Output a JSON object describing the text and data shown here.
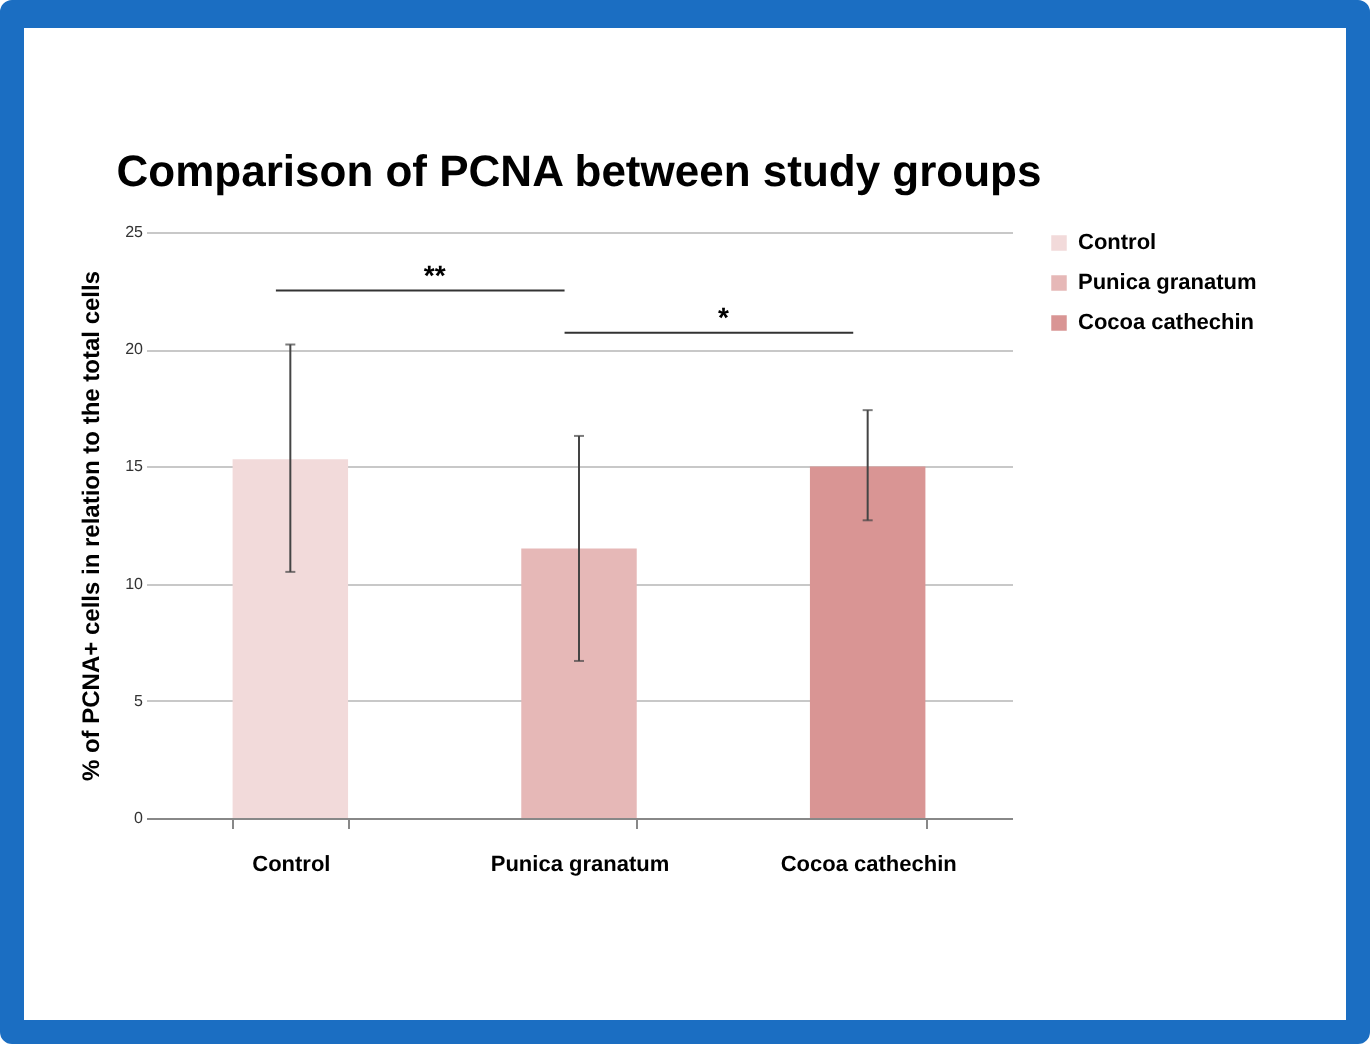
{
  "chart_data": {
    "type": "bar",
    "title": "Comparison of PCNA between study groups",
    "ylabel": "% of PCNA+ cells in relation to the total cells",
    "categories": [
      "Control",
      "Punica granatum",
      "Cocoa cathechin"
    ],
    "series": [
      {
        "name": "Control",
        "color": "#f2dada",
        "values": [
          15.3,
          null,
          null
        ],
        "errors": [
          [
            10.5,
            20.2
          ],
          null,
          null
        ]
      },
      {
        "name": "Punica granatum",
        "color": "#e6b8b7",
        "values": [
          null,
          11.5,
          null
        ],
        "errors": [
          null,
          [
            6.7,
            16.3
          ],
          null
        ]
      },
      {
        "name": "Cocoa cathechin",
        "color": "#d99594",
        "values": [
          null,
          null,
          15.0
        ],
        "errors": [
          null,
          null,
          [
            12.7,
            17.4
          ]
        ]
      }
    ],
    "ylim": [
      0,
      25
    ],
    "yticks": [
      0,
      5,
      10,
      15,
      20,
      25
    ],
    "grid": "y",
    "legend": "right",
    "annotations": [
      "**",
      "*"
    ]
  }
}
